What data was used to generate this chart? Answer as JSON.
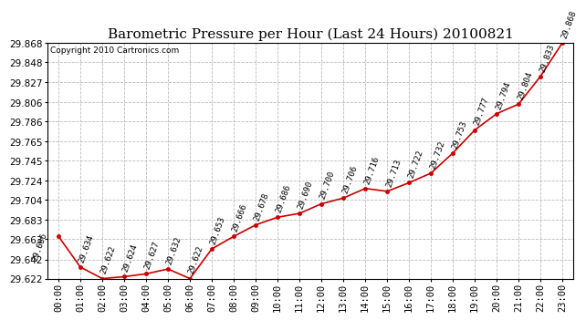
{
  "title": "Barometric Pressure per Hour (Last 24 Hours) 20100821",
  "copyright": "Copyright 2010 Cartronics.com",
  "hours": [
    "00:00",
    "01:00",
    "02:00",
    "03:00",
    "04:00",
    "05:00",
    "06:00",
    "07:00",
    "08:00",
    "09:00",
    "10:00",
    "11:00",
    "12:00",
    "13:00",
    "14:00",
    "15:00",
    "16:00",
    "17:00",
    "18:00",
    "19:00",
    "20:00",
    "21:00",
    "22:00",
    "23:00"
  ],
  "values": [
    29.666,
    29.634,
    29.622,
    29.624,
    29.627,
    29.632,
    29.622,
    29.653,
    29.666,
    29.678,
    29.686,
    29.69,
    29.7,
    29.706,
    29.716,
    29.713,
    29.722,
    29.732,
    29.753,
    29.777,
    29.794,
    29.804,
    29.833,
    29.868
  ],
  "ylim_min": 29.622,
  "ylim_max": 29.868,
  "yticks": [
    29.622,
    29.642,
    29.663,
    29.683,
    29.704,
    29.724,
    29.745,
    29.765,
    29.786,
    29.806,
    29.827,
    29.848,
    29.868
  ],
  "line_color": "#cc0000",
  "marker_color": "#cc0000",
  "bg_color": "#ffffff",
  "plot_bg_color": "#ffffff",
  "grid_color": "#bbbbbb",
  "title_fontsize": 11,
  "copyright_fontsize": 6.5,
  "tick_label_fontsize": 7.5,
  "data_label_fontsize": 6.5
}
